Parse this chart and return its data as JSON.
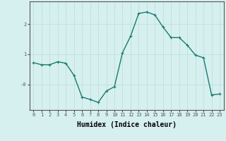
{
  "x": [
    0,
    1,
    2,
    3,
    4,
    5,
    6,
    7,
    8,
    9,
    10,
    11,
    12,
    13,
    14,
    15,
    16,
    17,
    18,
    19,
    20,
    21,
    22,
    23
  ],
  "y": [
    0.72,
    0.65,
    0.65,
    0.75,
    0.7,
    0.3,
    -0.42,
    -0.5,
    -0.6,
    -0.22,
    -0.08,
    1.05,
    1.6,
    2.35,
    2.4,
    2.3,
    1.9,
    1.55,
    1.55,
    1.3,
    0.97,
    0.88,
    -0.35,
    -0.32
  ],
  "line_color": "#1a7a6e",
  "marker": "+",
  "marker_size": 3,
  "bg_color": "#d6f0f0",
  "grid_color": "#c0dede",
  "axis_color": "#555555",
  "xlabel": "Humidex (Indice chaleur)",
  "xlabel_fontsize": 7,
  "ylim": [
    -0.85,
    2.75
  ],
  "xlim": [
    -0.5,
    23.5
  ],
  "line_width": 1.0
}
